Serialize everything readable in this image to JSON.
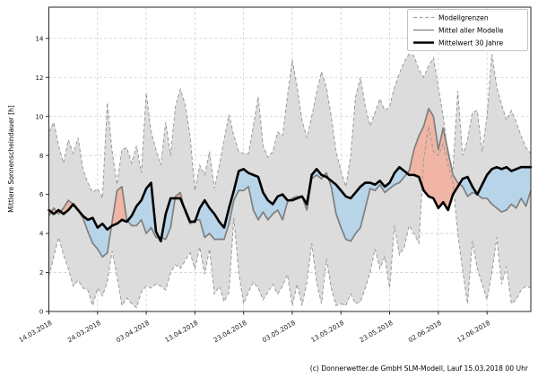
{
  "caption": "(c) Donnerwetter.de GmbH SLM-Modell, Lauf 15.03.2018 00 Uhr",
  "chart_data": {
    "type": "line",
    "title": "",
    "xlabel": "",
    "ylabel": "Mittlere Sonnenscheindauer [h]",
    "ylim": [
      0,
      15.6
    ],
    "yticks": [
      0,
      2,
      4,
      6,
      8,
      10,
      12,
      14
    ],
    "ytick_labels": [
      "0",
      "2",
      "4",
      "6",
      "8",
      "10",
      "12",
      "14"
    ],
    "x_unit": "days since 14.03.2018, daily values",
    "xlim": [
      0,
      99
    ],
    "xtick_days": [
      0,
      10,
      20,
      30,
      40,
      50,
      60,
      70,
      80,
      90
    ],
    "xtick_labels": [
      "14.03.2018",
      "24.03.2018",
      "03.04.2018",
      "13.04.2018",
      "23.04.2018",
      "03.05.2018",
      "13.05.2018",
      "23.05.2018",
      "02.06.2018",
      "12.06.2018"
    ],
    "grid": true,
    "legend": {
      "position": "upper right",
      "entries": [
        {
          "label": "Modellgrenzen",
          "style": "dashed",
          "color": "#a3a3a3"
        },
        {
          "label": "Mittel aller Modelle",
          "style": "solid",
          "color": "#7f7f7f"
        },
        {
          "label": "Mittelwert 30 Jahre",
          "style": "solid-thick",
          "color": "#000000"
        }
      ]
    },
    "colors": {
      "band_fill": "#dcdcdc",
      "bound_line": "#9a9a9a",
      "model_mean_line": "#7f7f7f",
      "mean30_line": "#000000",
      "above_fill": "#f0b5a4",
      "below_fill": "#b7d4e8",
      "gridline": "#cfcfcf",
      "frame": "#262626"
    },
    "series": [
      {
        "name": "Modellgrenzen oben",
        "values": [
          9.2,
          9.7,
          8.5,
          7.6,
          8.8,
          8.1,
          8.9,
          7.3,
          6.6,
          6.1,
          6.3,
          5.8,
          10.7,
          8.2,
          6.5,
          8.3,
          8.4,
          7.6,
          8.5,
          7.1,
          11.2,
          9.2,
          8.3,
          7.5,
          9.7,
          8.0,
          10.5,
          11.4,
          10.6,
          9.0,
          6.2,
          7.5,
          7.0,
          8.2,
          6.3,
          7.5,
          8.8,
          10.1,
          9.0,
          8.2,
          8.1,
          8.1,
          9.5,
          11.0,
          8.5,
          7.9,
          8.2,
          9.2,
          9.0,
          11.0,
          12.9,
          11.5,
          9.8,
          8.9,
          10.0,
          11.2,
          12.3,
          11.5,
          10.0,
          8.2,
          7.2,
          6.4,
          8.0,
          11.0,
          12.0,
          10.5,
          9.5,
          10.2,
          10.9,
          10.3,
          10.5,
          11.5,
          12.2,
          12.8,
          13.2,
          13.1,
          12.4,
          12.0,
          12.6,
          13.0,
          11.5,
          10.0,
          8.0,
          7.3,
          11.3,
          8.0,
          8.8,
          10.2,
          10.3,
          8.2,
          10.0,
          13.2,
          11.5,
          10.6,
          9.8,
          10.3,
          9.7,
          9.0,
          8.4,
          8.1
        ]
      },
      {
        "name": "Modellgrenzen unten",
        "values": [
          1.8,
          2.8,
          3.8,
          2.9,
          2.2,
          1.3,
          1.6,
          1.2,
          1.1,
          0.3,
          1.2,
          0.8,
          1.5,
          3.1,
          1.8,
          0.3,
          0.7,
          0.4,
          0.2,
          1.0,
          1.3,
          1.2,
          1.4,
          1.3,
          1.1,
          2.0,
          2.4,
          2.2,
          2.6,
          3.0,
          2.2,
          3.3,
          1.9,
          3.2,
          0.9,
          1.3,
          0.5,
          1.0,
          4.8,
          2.0,
          0.4,
          1.0,
          1.5,
          1.2,
          0.6,
          1.0,
          1.4,
          0.9,
          1.3,
          1.9,
          0.3,
          1.4,
          0.3,
          1.5,
          3.5,
          1.5,
          0.4,
          2.7,
          1.2,
          0.3,
          0.4,
          0.3,
          0.9,
          0.4,
          0.5,
          1.2,
          2.0,
          3.2,
          2.2,
          2.8,
          1.2,
          4.4,
          2.9,
          3.3,
          4.4,
          4.0,
          3.5,
          7.8,
          9.5,
          8.2,
          8.0,
          8.6,
          7.5,
          6.6,
          4.0,
          2.1,
          0.4,
          3.6,
          2.2,
          1.4,
          0.6,
          2.0,
          3.8,
          1.4,
          2.3,
          0.4,
          0.6,
          1.1,
          1.3,
          1.2
        ]
      },
      {
        "name": "Mittel aller Modelle",
        "values": [
          4.9,
          5.3,
          5.0,
          5.3,
          5.7,
          5.5,
          5.2,
          4.8,
          4.1,
          3.5,
          3.2,
          2.8,
          3.0,
          4.6,
          6.2,
          6.4,
          4.7,
          4.4,
          4.4,
          4.7,
          4.0,
          4.3,
          3.8,
          3.8,
          3.7,
          4.3,
          5.9,
          6.1,
          5.1,
          4.5,
          4.7,
          4.7,
          3.8,
          4.0,
          3.7,
          3.7,
          3.7,
          4.5,
          5.7,
          6.2,
          6.2,
          6.4,
          5.2,
          4.7,
          5.1,
          4.7,
          5.0,
          5.2,
          4.7,
          5.6,
          5.8,
          5.9,
          5.9,
          5.2,
          6.8,
          7.0,
          6.8,
          7.1,
          6.4,
          5.0,
          4.3,
          3.7,
          3.6,
          4.0,
          4.3,
          5.3,
          6.3,
          6.2,
          6.5,
          6.1,
          6.3,
          6.5,
          6.6,
          6.9,
          7.2,
          8.3,
          9.0,
          9.5,
          10.4,
          10.0,
          8.3,
          9.4,
          8.2,
          7.0,
          6.6,
          6.4,
          5.9,
          6.1,
          6.0,
          5.8,
          5.8,
          5.5,
          5.3,
          5.1,
          5.2,
          5.5,
          5.3,
          5.8,
          5.4,
          6.2
        ]
      },
      {
        "name": "Mittelwert 30 Jahre",
        "values": [
          5.2,
          5.0,
          5.2,
          5.0,
          5.2,
          5.5,
          5.2,
          4.9,
          4.7,
          4.8,
          4.3,
          4.5,
          4.2,
          4.4,
          4.5,
          4.7,
          4.6,
          4.9,
          5.4,
          5.7,
          6.3,
          6.6,
          4.1,
          3.6,
          5.0,
          5.8,
          5.8,
          5.8,
          5.2,
          4.6,
          4.6,
          5.3,
          5.7,
          5.3,
          5.0,
          4.6,
          4.3,
          5.3,
          6.2,
          7.2,
          7.3,
          7.1,
          7.0,
          6.9,
          6.1,
          5.7,
          5.5,
          5.9,
          6.0,
          5.7,
          5.7,
          5.8,
          5.9,
          5.5,
          7.0,
          7.3,
          7.0,
          6.9,
          6.7,
          6.5,
          6.2,
          5.9,
          5.8,
          6.1,
          6.4,
          6.6,
          6.6,
          6.5,
          6.7,
          6.4,
          6.6,
          7.1,
          7.4,
          7.2,
          7.0,
          7.0,
          6.9,
          6.2,
          5.9,
          5.8,
          5.3,
          5.6,
          5.2,
          6.0,
          6.4,
          6.8,
          6.9,
          6.4,
          6.0,
          6.5,
          7.0,
          7.3,
          7.4,
          7.3,
          7.4,
          7.2,
          7.3,
          7.4,
          7.4,
          7.4
        ]
      }
    ]
  }
}
